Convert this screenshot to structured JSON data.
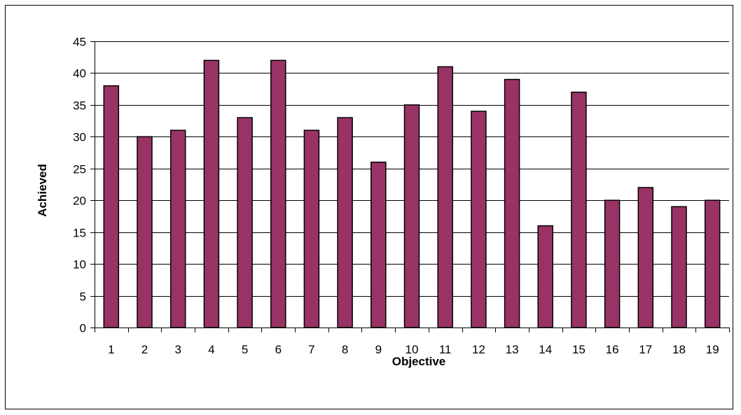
{
  "chart_data": {
    "type": "bar",
    "title": "",
    "xlabel": "Objective",
    "ylabel": "Achieved",
    "categories": [
      "1",
      "2",
      "3",
      "4",
      "5",
      "6",
      "7",
      "8",
      "9",
      "10",
      "11",
      "12",
      "13",
      "14",
      "15",
      "16",
      "17",
      "18",
      "19"
    ],
    "values": [
      38,
      30,
      31,
      42,
      33,
      42,
      31,
      33,
      26,
      35,
      41,
      34,
      39,
      16,
      37,
      20,
      22,
      19,
      20
    ],
    "ylim": [
      0,
      45
    ],
    "yticks": [
      0,
      5,
      10,
      15,
      20,
      25,
      30,
      35,
      40,
      45
    ],
    "grid": true,
    "legend": "none",
    "bar_color": "#993366",
    "bar_edge_color": "#000000",
    "grid_color": "#000000"
  }
}
